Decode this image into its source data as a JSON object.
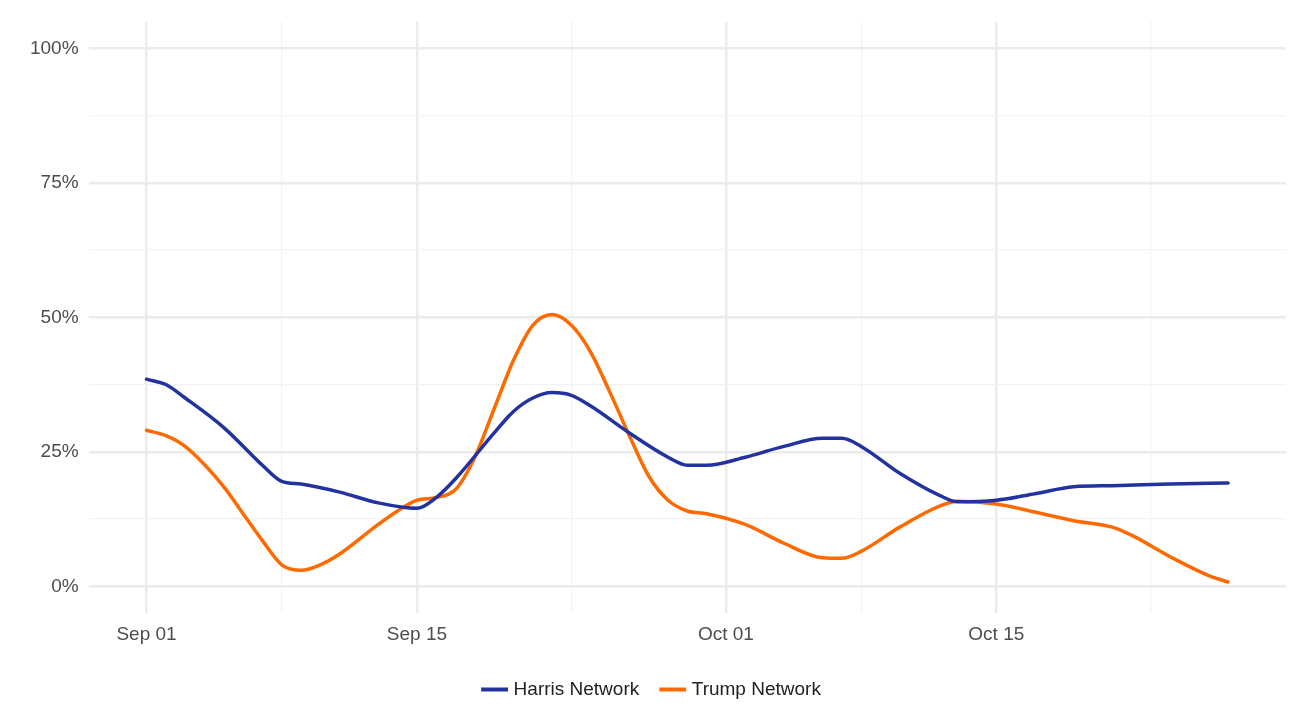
{
  "chart_data": {
    "type": "line",
    "xlim": [
      "--08-29",
      "--10-30"
    ],
    "xticks": [
      {
        "value": "--09-01",
        "label": "Sep 01"
      },
      {
        "value": "--09-08",
        "label": null
      },
      {
        "value": "--09-15",
        "label": "Sep 15"
      },
      {
        "value": "--09-23",
        "label": null
      },
      {
        "value": "--10-01",
        "label": "Oct 01"
      },
      {
        "value": "--10-08",
        "label": null
      },
      {
        "value": "--10-15",
        "label": "Oct 15"
      },
      {
        "value": "--10-23",
        "label": null
      }
    ],
    "ylim": [
      -5,
      105
    ],
    "yticks": [
      {
        "value": 0,
        "label": "0%"
      },
      {
        "value": 12.5,
        "label": null
      },
      {
        "value": 25,
        "label": "25%"
      },
      {
        "value": 37.5,
        "label": null
      },
      {
        "value": 50,
        "label": "50%"
      },
      {
        "value": 62.5,
        "label": null
      },
      {
        "value": 75,
        "label": "75%"
      },
      {
        "value": 87.5,
        "label": null
      },
      {
        "value": 100,
        "label": "100%"
      }
    ],
    "grid": true,
    "legend": "bottom",
    "marker": "none",
    "line_style": "solid",
    "series": [
      {
        "name": "Harris Network",
        "color": "#2233a0",
        "x": [
          "--09-01",
          "--09-02",
          "--09-03",
          "--09-05",
          "--09-07",
          "--09-08",
          "--09-09",
          "--09-11",
          "--09-13",
          "--09-15",
          "--09-16",
          "--09-17",
          "--09-19",
          "--09-20",
          "--09-21",
          "--09-22",
          "--09-23",
          "--09-24",
          "--09-26",
          "--09-28",
          "--09-29",
          "--09-30",
          "--10-02",
          "--10-04",
          "--10-06",
          "--10-07",
          "--10-08",
          "--10-10",
          "--10-12",
          "--10-13",
          "--10-15",
          "--10-17",
          "--10-19",
          "--10-21",
          "--10-24",
          "--10-27"
        ],
        "values": [
          38.5,
          37.5,
          35,
          29.5,
          22.5,
          19.5,
          19,
          17.5,
          15.5,
          14.5,
          16.5,
          20,
          28.5,
          32.5,
          35,
          36,
          35.5,
          33.5,
          28.5,
          24,
          22.5,
          22.5,
          24,
          26,
          27.5,
          27.5,
          26,
          21,
          17,
          15.7,
          16,
          17.2,
          18.5,
          18.7,
          19,
          19.2
        ]
      },
      {
        "name": "Trump Network",
        "color": "#ff6a00",
        "x": [
          "--09-01",
          "--09-02",
          "--09-03",
          "--09-05",
          "--09-06",
          "--09-07",
          "--09-08",
          "--09-09",
          "--09-10",
          "--09-11",
          "--09-13",
          "--09-14",
          "--09-15",
          "--09-16",
          "--09-17",
          "--09-18",
          "--09-19",
          "--09-20",
          "--09-21",
          "--09-22",
          "--09-23",
          "--09-24",
          "--09-25",
          "--09-26",
          "--09-27",
          "--09-28",
          "--09-29",
          "--09-30",
          "--10-02",
          "--10-04",
          "--10-06",
          "--10-07",
          "--10-08",
          "--10-10",
          "--10-12",
          "--10-13",
          "--10-15",
          "--10-17",
          "--10-19",
          "--10-21",
          "--10-22",
          "--10-24",
          "--10-26",
          "--10-27"
        ],
        "values": [
          29,
          28,
          26,
          18.5,
          13.5,
          8.5,
          4,
          3,
          4,
          6,
          11.5,
          14,
          16,
          16.5,
          18,
          24,
          33,
          42,
          48.5,
          50.5,
          48.5,
          43.5,
          36,
          28,
          20.5,
          16,
          14,
          13.5,
          11.5,
          8,
          5.3,
          5.2,
          6.5,
          11,
          14.8,
          15.8,
          15.3,
          13.8,
          12.2,
          11,
          9.5,
          5.5,
          2,
          0.8
        ]
      }
    ]
  }
}
